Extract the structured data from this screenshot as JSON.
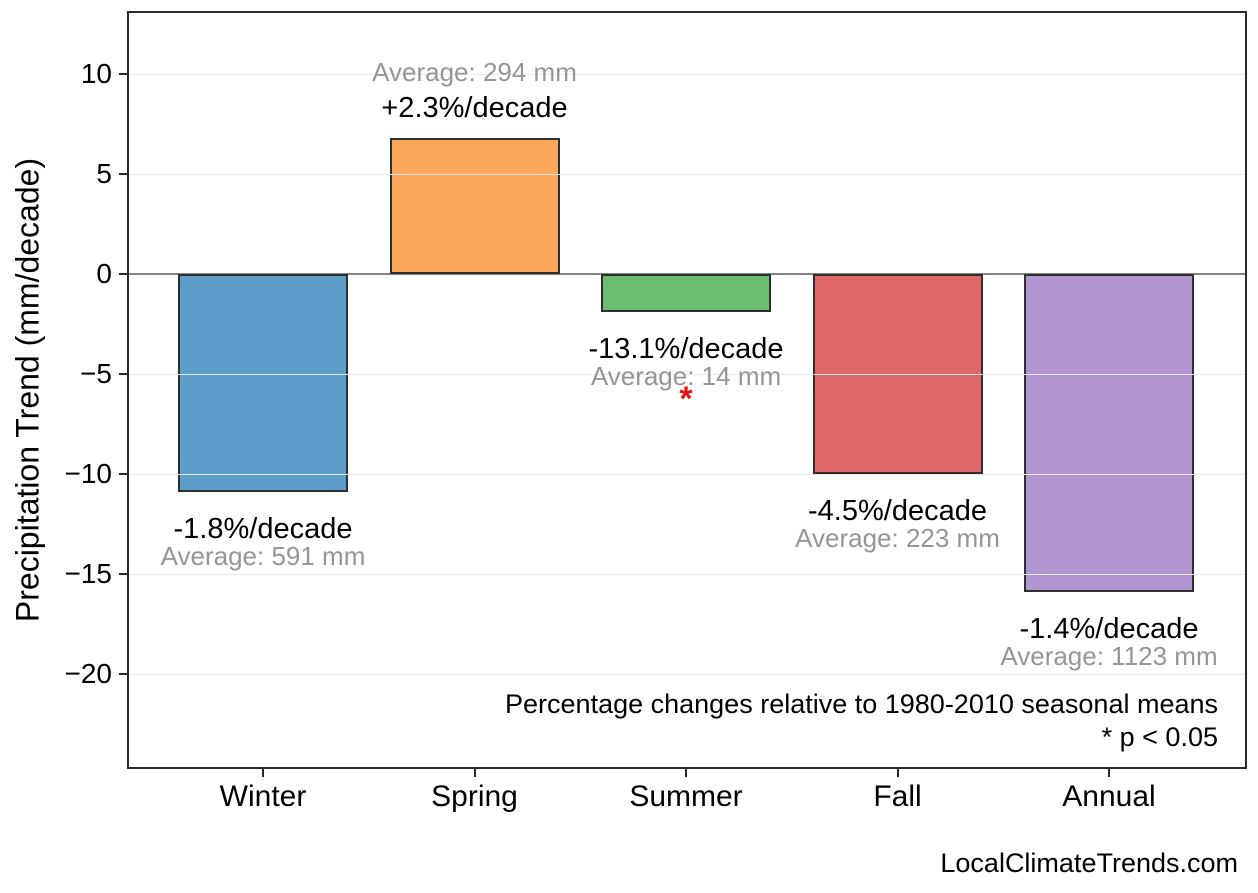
{
  "chart_data": {
    "type": "bar",
    "title": "",
    "ylabel": "Precipitation Trend (mm/decade)",
    "xlabel": "",
    "categories": [
      "Winter",
      "Spring",
      "Summer",
      "Fall",
      "Annual"
    ],
    "series": [
      {
        "name": "Precipitation trend (mm/decade)",
        "values": [
          -10.9,
          6.8,
          -1.9,
          -10.0,
          -15.9
        ]
      }
    ],
    "bars": [
      {
        "season": "Winter",
        "value": -10.9,
        "trend_label": "-1.8%/decade",
        "average_label": "Average: 591 mm",
        "color": "#5D9DC9",
        "significant": false
      },
      {
        "season": "Spring",
        "value": 6.8,
        "trend_label": "+2.3%/decade",
        "average_label": "Average: 294 mm",
        "color": "#FBA75C",
        "significant": false
      },
      {
        "season": "Summer",
        "value": -1.9,
        "trend_label": "-13.1%/decade",
        "average_label": "Average: 14 mm",
        "color": "#6ABC6E",
        "significant": true
      },
      {
        "season": "Fall",
        "value": -10.0,
        "trend_label": "-4.5%/decade",
        "average_label": "Average: 223 mm",
        "color": "#E06768",
        "significant": false
      },
      {
        "season": "Annual",
        "value": -15.9,
        "trend_label": "-1.4%/decade",
        "average_label": "Average: 1123 mm",
        "color": "#B195D0",
        "significant": false
      }
    ],
    "yticks": [
      10,
      5,
      0,
      -5,
      -10,
      -15,
      -20
    ],
    "ylim": [
      -24.7,
      13.1
    ],
    "grid": true,
    "legend": false,
    "significance_marker": "*",
    "colors": {
      "bar_edge": "#2E2E2E",
      "zero_line": "#858585",
      "gridline": "#E9E9E9",
      "axis_border": "#2A2A2A",
      "gray_text": "#969696",
      "black_text": "#000000",
      "significance": "#EE1111"
    }
  },
  "footnote": {
    "line1": "Percentage changes relative to 1980-2010 seasonal means",
    "line2": "* p < 0.05"
  },
  "watermark": "LocalClimateTrends.com"
}
